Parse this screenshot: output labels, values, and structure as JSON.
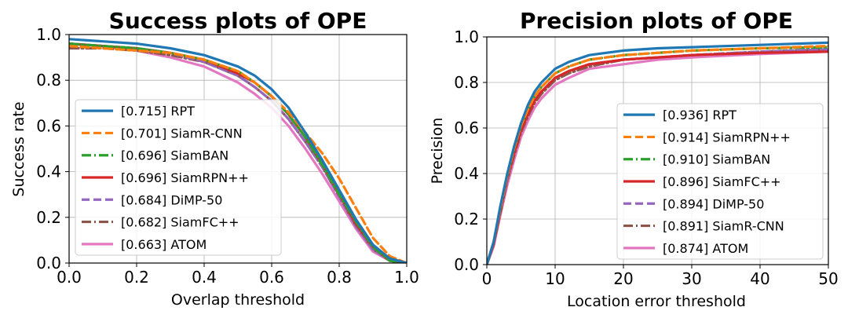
{
  "chart_data": [
    {
      "type": "line",
      "title": "Success plots of OPE",
      "xlabel": "Overlap threshold",
      "ylabel": "Success rate",
      "xlim": [
        0,
        1
      ],
      "ylim": [
        0,
        1
      ],
      "xticks": [
        "0.0",
        "0.2",
        "0.4",
        "0.6",
        "0.8",
        "1.0"
      ],
      "yticks": [
        "0.0",
        "0.2",
        "0.4",
        "0.6",
        "0.8",
        "1.0"
      ],
      "grid": true,
      "legend_position": "lower-left",
      "x": [
        0,
        0.1,
        0.2,
        0.3,
        0.4,
        0.5,
        0.55,
        0.6,
        0.65,
        0.7,
        0.75,
        0.8,
        0.85,
        0.9,
        0.95,
        1.0
      ],
      "series": [
        {
          "name": "RPT",
          "label": "[0.715] RPT",
          "color": "#1f77b4",
          "dash": "solid",
          "values": [
            0.98,
            0.97,
            0.96,
            0.94,
            0.91,
            0.86,
            0.82,
            0.76,
            0.68,
            0.57,
            0.45,
            0.32,
            0.19,
            0.08,
            0.02,
            0.0
          ]
        },
        {
          "name": "SiamR-CNN",
          "label": "[0.701] SiamR-CNN",
          "color": "#ff7f0e",
          "dash": "dashed",
          "values": [
            0.95,
            0.94,
            0.93,
            0.92,
            0.89,
            0.84,
            0.79,
            0.73,
            0.66,
            0.57,
            0.48,
            0.37,
            0.24,
            0.11,
            0.03,
            0.0
          ]
        },
        {
          "name": "SiamBAN",
          "label": "[0.696] SiamBAN",
          "color": "#2ca02c",
          "dash": "dashdot",
          "values": [
            0.96,
            0.95,
            0.94,
            0.92,
            0.89,
            0.84,
            0.79,
            0.73,
            0.65,
            0.55,
            0.43,
            0.3,
            0.18,
            0.07,
            0.01,
            0.0
          ]
        },
        {
          "name": "SiamRPN++",
          "label": "[0.696] SiamRPN++",
          "color": "#d62728",
          "dash": "solid",
          "values": [
            0.96,
            0.95,
            0.94,
            0.92,
            0.89,
            0.83,
            0.79,
            0.73,
            0.65,
            0.55,
            0.43,
            0.3,
            0.17,
            0.07,
            0.01,
            0.0
          ]
        },
        {
          "name": "DiMP-50",
          "label": "[0.684] DiMP-50",
          "color": "#9467bd",
          "dash": "dashed",
          "values": [
            0.96,
            0.95,
            0.94,
            0.92,
            0.88,
            0.82,
            0.77,
            0.71,
            0.63,
            0.53,
            0.42,
            0.29,
            0.16,
            0.06,
            0.01,
            0.0
          ]
        },
        {
          "name": "SiamFC++",
          "label": "[0.682] SiamFC++",
          "color": "#8c564b",
          "dash": "dashdot",
          "values": [
            0.94,
            0.94,
            0.93,
            0.91,
            0.88,
            0.82,
            0.77,
            0.71,
            0.63,
            0.53,
            0.42,
            0.29,
            0.16,
            0.06,
            0.01,
            0.0
          ]
        },
        {
          "name": "ATOM",
          "label": "[0.663] ATOM",
          "color": "#e377c2",
          "dash": "solid",
          "values": [
            0.96,
            0.95,
            0.93,
            0.9,
            0.86,
            0.79,
            0.74,
            0.68,
            0.6,
            0.5,
            0.39,
            0.27,
            0.15,
            0.05,
            0.01,
            0.0
          ]
        }
      ]
    },
    {
      "type": "line",
      "title": "Precision plots of OPE",
      "xlabel": "Location error threshold",
      "ylabel": "Precision",
      "xlim": [
        0,
        50
      ],
      "ylim": [
        0,
        1
      ],
      "xticks": [
        "0",
        "10",
        "20",
        "30",
        "40",
        "50"
      ],
      "yticks": [
        "0.0",
        "0.2",
        "0.4",
        "0.6",
        "0.8",
        "1.0"
      ],
      "grid": true,
      "legend_position": "lower-right",
      "x": [
        0,
        1,
        2,
        3,
        4,
        5,
        6,
        7,
        8,
        10,
        12,
        15,
        20,
        25,
        30,
        40,
        50
      ],
      "series": [
        {
          "name": "RPT",
          "label": "[0.936] RPT",
          "color": "#1f77b4",
          "dash": "solid",
          "values": [
            0.0,
            0.1,
            0.26,
            0.4,
            0.52,
            0.62,
            0.7,
            0.76,
            0.8,
            0.86,
            0.89,
            0.92,
            0.94,
            0.95,
            0.955,
            0.965,
            0.975
          ]
        },
        {
          "name": "SiamRPN++",
          "label": "[0.914] SiamRPN++",
          "color": "#ff7f0e",
          "dash": "dashed",
          "values": [
            0.0,
            0.1,
            0.25,
            0.39,
            0.51,
            0.61,
            0.68,
            0.74,
            0.78,
            0.84,
            0.87,
            0.9,
            0.92,
            0.93,
            0.94,
            0.95,
            0.96
          ]
        },
        {
          "name": "SiamBAN",
          "label": "[0.910] SiamBAN",
          "color": "#2ca02c",
          "dash": "dashdot",
          "values": [
            0.0,
            0.1,
            0.25,
            0.39,
            0.51,
            0.61,
            0.68,
            0.74,
            0.78,
            0.84,
            0.87,
            0.9,
            0.92,
            0.93,
            0.94,
            0.95,
            0.955
          ]
        },
        {
          "name": "SiamFC++",
          "label": "[0.896] SiamFC++",
          "color": "#d62728",
          "dash": "solid",
          "values": [
            0.0,
            0.09,
            0.24,
            0.38,
            0.49,
            0.59,
            0.66,
            0.72,
            0.76,
            0.82,
            0.85,
            0.88,
            0.9,
            0.91,
            0.92,
            0.93,
            0.935
          ]
        },
        {
          "name": "DiMP-50",
          "label": "[0.894] DiMP-50",
          "color": "#9467bd",
          "dash": "dashed",
          "values": [
            0.0,
            0.09,
            0.24,
            0.37,
            0.49,
            0.59,
            0.66,
            0.72,
            0.76,
            0.82,
            0.85,
            0.88,
            0.9,
            0.91,
            0.92,
            0.935,
            0.945
          ]
        },
        {
          "name": "SiamR-CNN",
          "label": "[0.891] SiamR-CNN",
          "color": "#8c564b",
          "dash": "dashdot",
          "values": [
            0.0,
            0.09,
            0.23,
            0.37,
            0.48,
            0.58,
            0.65,
            0.71,
            0.75,
            0.81,
            0.84,
            0.87,
            0.9,
            0.91,
            0.92,
            0.935,
            0.945
          ]
        },
        {
          "name": "ATOM",
          "label": "[0.874] ATOM",
          "color": "#e377c2",
          "dash": "solid",
          "values": [
            0.0,
            0.08,
            0.22,
            0.35,
            0.46,
            0.56,
            0.63,
            0.69,
            0.73,
            0.79,
            0.82,
            0.86,
            0.88,
            0.9,
            0.91,
            0.925,
            0.935
          ]
        }
      ]
    }
  ]
}
